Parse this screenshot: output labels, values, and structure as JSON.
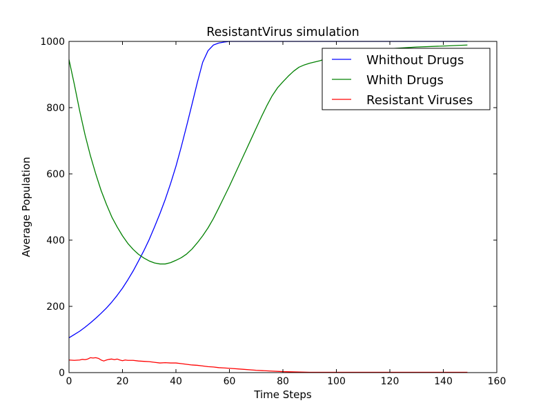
{
  "chart_data": {
    "type": "line",
    "title": "ResistantVirus simulation",
    "xlabel": "Time Steps",
    "ylabel": "Average Population",
    "xlim": [
      0,
      160
    ],
    "ylim": [
      0,
      1000
    ],
    "xticks": [
      0,
      20,
      40,
      60,
      80,
      100,
      120,
      140,
      160
    ],
    "yticks": [
      0,
      200,
      400,
      600,
      800,
      1000
    ],
    "xtick_labels": [
      "0",
      "20",
      "40",
      "60",
      "80",
      "100",
      "120",
      "140",
      "160"
    ],
    "ytick_labels": [
      "0",
      "200",
      "400",
      "600",
      "800",
      "1000"
    ],
    "grid": false,
    "legend_position": "top-right",
    "series": [
      {
        "name": "Whithout Drugs",
        "color": "#0000ff",
        "x": [
          0,
          2,
          4,
          6,
          8,
          10,
          12,
          14,
          16,
          18,
          20,
          22,
          24,
          26,
          28,
          30,
          32,
          34,
          36,
          38,
          40,
          42,
          44,
          46,
          48,
          50,
          52,
          54,
          56,
          58,
          60,
          62,
          64,
          70,
          80,
          90,
          100,
          110,
          120,
          130,
          140,
          149
        ],
        "y": [
          105,
          115,
          125,
          137,
          150,
          164,
          179,
          195,
          213,
          233,
          255,
          280,
          307,
          337,
          368,
          402,
          440,
          480,
          523,
          571,
          623,
          682,
          745,
          810,
          876,
          937,
          972,
          989,
          995,
          998,
          1000,
          1000,
          1000,
          1000,
          1000,
          1000,
          1000,
          1000,
          1000,
          1000,
          1000,
          1000
        ]
      },
      {
        "name": "Whith Drugs",
        "color": "#008000",
        "x": [
          0,
          2,
          4,
          6,
          8,
          10,
          12,
          14,
          16,
          18,
          20,
          22,
          24,
          26,
          28,
          30,
          32,
          34,
          36,
          38,
          40,
          42,
          44,
          46,
          48,
          50,
          52,
          54,
          56,
          58,
          60,
          62,
          64,
          66,
          68,
          70,
          72,
          74,
          76,
          78,
          80,
          82,
          84,
          86,
          88,
          90,
          92,
          94,
          96,
          100,
          110,
          120,
          130,
          140,
          149
        ],
        "y": [
          945,
          870,
          790,
          718,
          655,
          600,
          550,
          508,
          470,
          440,
          413,
          390,
          372,
          357,
          346,
          337,
          331,
          328,
          328,
          332,
          339,
          347,
          358,
          373,
          392,
          413,
          437,
          465,
          497,
          530,
          563,
          598,
          633,
          668,
          703,
          738,
          773,
          806,
          836,
          860,
          878,
          895,
          910,
          922,
          929,
          934,
          938,
          942,
          948,
          957,
          970,
          978,
          983,
          986,
          989
        ]
      },
      {
        "name": "Resistant Viruses",
        "color": "#ff0000",
        "x": [
          0,
          2,
          4,
          5,
          6,
          7,
          8,
          9,
          10,
          11,
          12,
          13,
          14,
          15,
          16,
          17,
          18,
          19,
          20,
          21,
          22,
          24,
          26,
          28,
          30,
          32,
          34,
          36,
          38,
          40,
          42,
          44,
          46,
          48,
          50,
          52,
          54,
          56,
          58,
          60,
          65,
          70,
          75,
          80,
          85,
          90,
          100,
          110,
          120,
          130,
          140,
          149
        ],
        "y": [
          38,
          37,
          38,
          40,
          39,
          41,
          45,
          44,
          45,
          43,
          38,
          35,
          38,
          40,
          41,
          39,
          41,
          38,
          36,
          38,
          37,
          37,
          35,
          34,
          33,
          31,
          29,
          30,
          29,
          29,
          27,
          25,
          23,
          22,
          20,
          18,
          17,
          15,
          14,
          13,
          10,
          7,
          5,
          3,
          2,
          1,
          1,
          1,
          1,
          1,
          1,
          1
        ]
      }
    ]
  }
}
